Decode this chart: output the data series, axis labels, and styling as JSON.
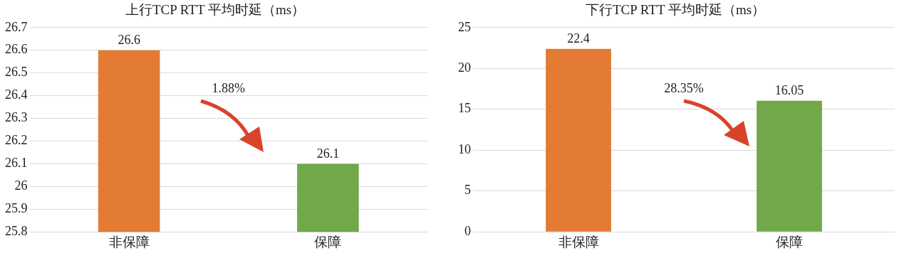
{
  "chart_data": [
    {
      "type": "bar",
      "title": "上行TCP RTT 平均时延（ms）",
      "categories": [
        "非保障",
        "保障"
      ],
      "values": [
        26.6,
        26.1
      ],
      "colors": [
        "#e37b35",
        "#70a84a"
      ],
      "ylim": [
        25.8,
        26.7
      ],
      "yticks": [
        25.8,
        25.9,
        26,
        26.1,
        26.2,
        26.3,
        26.4,
        26.5,
        26.6,
        26.7
      ],
      "grid": "y",
      "data_labels": true,
      "annotations": [
        "1.88%"
      ]
    },
    {
      "type": "bar",
      "title": "下行TCP RTT 平均时延（ms）",
      "categories": [
        "非保障",
        "保障"
      ],
      "values": [
        22.4,
        16.05
      ],
      "colors": [
        "#e37b35",
        "#70a84a"
      ],
      "ylim": [
        0,
        25
      ],
      "yticks": [
        0,
        5,
        10,
        15,
        20,
        25
      ],
      "grid": "y",
      "data_labels": true,
      "annotations": [
        "28.35%"
      ]
    }
  ]
}
